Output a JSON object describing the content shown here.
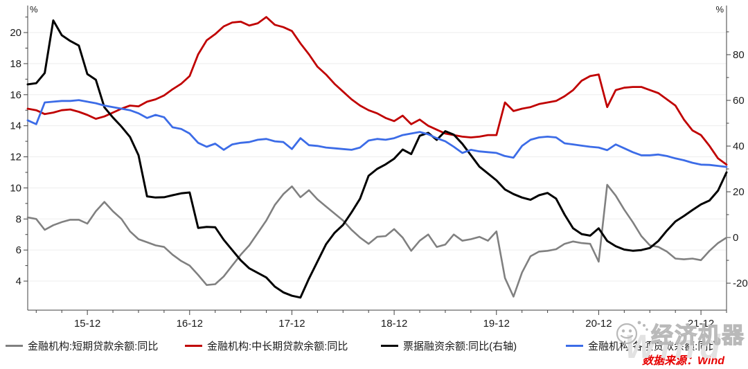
{
  "source": {
    "text": "数据来源：Wind"
  },
  "watermark": {
    "text": "经济机器",
    "brand": "Wind"
  },
  "legend_labels": {
    "short": "金融机构:短期贷款余额:同比",
    "medium_long": "金融机构:中长期贷款余额:同比",
    "bills": "票据融资余额:同比(右轴)",
    "all_loans": "金融机构:各项贷款余额:同比"
  },
  "chart_data": {
    "type": "line",
    "title": "",
    "x_start": "2015-05",
    "x_freq": "monthly",
    "x_tick_labels": [
      "15-12",
      "16-12",
      "17-12",
      "18-12",
      "19-12",
      "20-12",
      "21-12"
    ],
    "x_tick_indices": [
      7,
      19,
      31,
      43,
      55,
      67,
      79
    ],
    "x_minor_tick_indices": [
      1,
      4,
      10,
      13,
      16,
      22,
      25,
      28,
      34,
      37,
      40,
      46,
      49,
      52,
      58,
      61,
      64,
      70,
      73,
      76,
      82
    ],
    "left_axis": {
      "unit": "%",
      "min": 2.13,
      "max": 21.74,
      "major_ticks": [
        4,
        6,
        8,
        10,
        12,
        14,
        16,
        18,
        20
      ],
      "minor_ticks": [
        5,
        7,
        9,
        11,
        13,
        15,
        17,
        19,
        21
      ]
    },
    "right_axis": {
      "unit": "%",
      "min": -31.8,
      "max": 101.5,
      "major_ticks": [
        -20,
        0,
        20,
        40,
        60,
        80
      ],
      "minor_ticks": [
        -10,
        10,
        30,
        50,
        70,
        90
      ]
    },
    "grid": "horizontal-light",
    "legend_position": "bottom",
    "colors": {
      "gray": "#808080",
      "red": "#c00000",
      "black": "#000000",
      "blue": "#3c6ce7"
    },
    "series": [
      {
        "name": "金融机构:短期贷款余额:同比",
        "color": "#808080",
        "axis": "left",
        "values": [
          8.1,
          8.0,
          7.3,
          7.6,
          7.8,
          7.95,
          7.95,
          7.7,
          8.5,
          9.1,
          8.5,
          8.0,
          7.2,
          6.7,
          6.5,
          6.3,
          6.2,
          5.7,
          5.3,
          5.0,
          4.4,
          3.75,
          3.8,
          4.3,
          5.0,
          5.7,
          6.3,
          7.1,
          7.9,
          8.9,
          9.6,
          10.1,
          9.4,
          9.85,
          9.26,
          8.8,
          8.35,
          7.9,
          7.3,
          6.8,
          6.4,
          6.85,
          6.9,
          7.35,
          6.8,
          5.95,
          6.6,
          7.0,
          6.2,
          6.35,
          7.0,
          6.6,
          6.7,
          6.85,
          6.6,
          7.2,
          4.2,
          3.0,
          4.55,
          5.6,
          5.9,
          5.95,
          6.05,
          6.4,
          6.55,
          6.45,
          6.4,
          5.25,
          10.2,
          9.5,
          8.6,
          7.8,
          6.9,
          6.3,
          6.2,
          5.9,
          5.45,
          5.4,
          5.45,
          5.35,
          5.95,
          6.45,
          6.8
        ]
      },
      {
        "name": "金融机构:中长期贷款余额:同比",
        "color": "#c00000",
        "axis": "left",
        "values": [
          15.1,
          15.0,
          14.75,
          14.85,
          15.0,
          15.05,
          14.9,
          14.7,
          14.45,
          14.6,
          14.85,
          15.1,
          15.3,
          15.25,
          15.55,
          15.7,
          15.95,
          16.35,
          16.7,
          17.2,
          18.6,
          19.5,
          19.9,
          20.4,
          20.65,
          20.7,
          20.45,
          20.6,
          21.0,
          20.5,
          20.35,
          20.1,
          19.3,
          18.6,
          17.8,
          17.3,
          16.7,
          16.2,
          15.7,
          15.3,
          15.0,
          14.8,
          14.5,
          14.3,
          14.65,
          14.1,
          14.4,
          14.0,
          13.75,
          13.5,
          13.4,
          13.3,
          13.25,
          13.3,
          13.4,
          13.4,
          15.5,
          14.95,
          15.1,
          15.2,
          15.4,
          15.5,
          15.6,
          15.9,
          16.3,
          16.9,
          17.2,
          17.3,
          15.2,
          16.3,
          16.45,
          16.5,
          16.5,
          16.3,
          16.1,
          15.7,
          15.3,
          14.4,
          13.7,
          13.4,
          12.7,
          11.9,
          11.5
        ]
      },
      {
        "name": "票据融资余额:同比(右轴)",
        "color": "#000000",
        "axis": "right",
        "values": [
          67,
          67.5,
          72,
          95,
          88.5,
          86,
          84,
          71.5,
          69,
          57,
          52.5,
          48.5,
          44,
          36,
          18,
          17.5,
          17.6,
          18.5,
          19.3,
          19.7,
          4.2,
          4.6,
          4.5,
          -1,
          -5.5,
          -10,
          -13.5,
          -15.5,
          -17.5,
          -21.5,
          -24,
          -25.5,
          -26.3,
          -18,
          -10.5,
          -3,
          2,
          5.5,
          11,
          17,
          27,
          30,
          32,
          34.5,
          38.5,
          36.5,
          44.5,
          45.8,
          42.7,
          46.5,
          45,
          41,
          36,
          31,
          28,
          25,
          21,
          19,
          17.5,
          16.5,
          18.5,
          19.5,
          17,
          10,
          4,
          1.5,
          0.8,
          4,
          -1.5,
          -3.8,
          -5.3,
          -5.8,
          -5.5,
          -4.6,
          -1.5,
          3,
          7,
          9.4,
          12,
          14.5,
          16.2,
          20.5,
          28.5
        ]
      },
      {
        "name": "金融机构:各项贷款余额:同比",
        "color": "#3c6ce7",
        "axis": "left",
        "values": [
          14.35,
          14.1,
          15.5,
          15.55,
          15.6,
          15.6,
          15.65,
          15.55,
          15.45,
          15.3,
          15.2,
          15.1,
          15.0,
          14.8,
          14.5,
          14.7,
          14.55,
          13.9,
          13.8,
          13.5,
          12.9,
          12.65,
          12.85,
          12.45,
          12.8,
          12.9,
          12.95,
          13.1,
          13.15,
          13.0,
          12.95,
          12.5,
          13.2,
          12.75,
          12.7,
          12.6,
          12.55,
          12.5,
          12.45,
          12.6,
          13.05,
          13.15,
          13.1,
          13.2,
          13.4,
          13.5,
          13.6,
          13.45,
          13.2,
          13.0,
          12.65,
          12.25,
          12.45,
          12.35,
          12.3,
          12.25,
          12.05,
          11.95,
          12.7,
          13.1,
          13.25,
          13.3,
          13.25,
          12.87,
          12.8,
          12.72,
          12.65,
          12.6,
          12.43,
          12.8,
          12.55,
          12.3,
          12.1,
          12.1,
          12.15,
          12.05,
          11.9,
          11.78,
          11.62,
          11.5,
          11.48,
          11.42,
          11.35
        ]
      }
    ]
  }
}
